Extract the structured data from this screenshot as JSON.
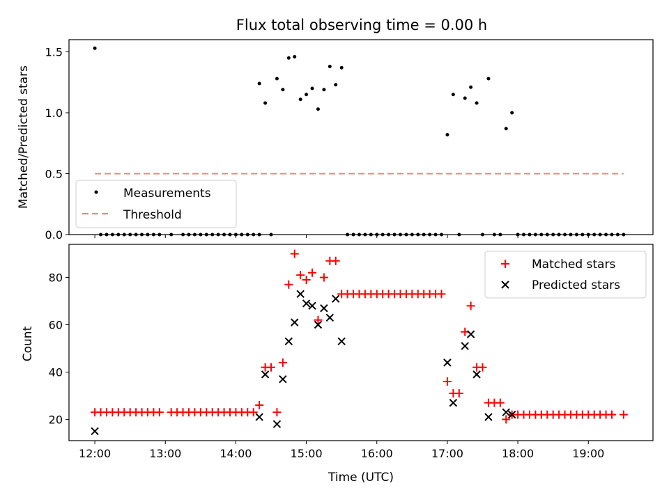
{
  "chart_data": [
    {
      "type": "scatter",
      "title": "Flux total observing time = 0.00 h",
      "xlabel": "",
      "ylabel": "Matched/Predicted stars",
      "xlim": [
        "11:38",
        "19:55"
      ],
      "ylim": [
        0,
        1.6
      ],
      "grid": false,
      "legend_position": "lower-left",
      "x_ticks": [
        "12:00",
        "13:00",
        "14:00",
        "15:00",
        "16:00",
        "17:00",
        "18:00",
        "19:00"
      ],
      "y_ticks": [
        "0.0",
        "0.5",
        "1.0",
        "1.5"
      ],
      "series": [
        {
          "name": "Measurements",
          "kind": "scatter",
          "marker": "dot",
          "color": "#000000",
          "points": [
            [
              "12:00",
              1.53
            ],
            [
              "12:05",
              0
            ],
            [
              "12:10",
              0
            ],
            [
              "12:15",
              0
            ],
            [
              "12:20",
              0
            ],
            [
              "12:25",
              0
            ],
            [
              "12:30",
              0
            ],
            [
              "12:35",
              0
            ],
            [
              "12:40",
              0
            ],
            [
              "12:45",
              0
            ],
            [
              "12:50",
              0
            ],
            [
              "12:55",
              0
            ],
            [
              "13:05",
              0
            ],
            [
              "13:15",
              0
            ],
            [
              "13:20",
              0
            ],
            [
              "13:25",
              0
            ],
            [
              "13:30",
              0
            ],
            [
              "13:35",
              0
            ],
            [
              "13:40",
              0
            ],
            [
              "13:45",
              0
            ],
            [
              "13:50",
              0
            ],
            [
              "13:55",
              0
            ],
            [
              "14:00",
              0
            ],
            [
              "14:05",
              0
            ],
            [
              "14:10",
              0
            ],
            [
              "14:15",
              0
            ],
            [
              "14:20",
              0
            ],
            [
              "14:20",
              1.24
            ],
            [
              "14:25",
              1.08
            ],
            [
              "14:30",
              0
            ],
            [
              "14:35",
              1.28
            ],
            [
              "14:40",
              1.19
            ],
            [
              "14:45",
              1.45
            ],
            [
              "14:50",
              1.46
            ],
            [
              "14:55",
              1.11
            ],
            [
              "15:00",
              1.15
            ],
            [
              "15:05",
              1.2
            ],
            [
              "15:10",
              1.03
            ],
            [
              "15:15",
              1.19
            ],
            [
              "15:20",
              1.38
            ],
            [
              "15:25",
              1.23
            ],
            [
              "15:30",
              1.37
            ],
            [
              "15:35",
              0
            ],
            [
              "15:40",
              0
            ],
            [
              "15:45",
              0
            ],
            [
              "15:50",
              0
            ],
            [
              "15:55",
              0
            ],
            [
              "16:00",
              0
            ],
            [
              "16:05",
              0
            ],
            [
              "16:10",
              0
            ],
            [
              "16:15",
              0
            ],
            [
              "16:20",
              0
            ],
            [
              "16:25",
              0
            ],
            [
              "16:30",
              0
            ],
            [
              "16:35",
              0
            ],
            [
              "16:40",
              0
            ],
            [
              "16:45",
              0
            ],
            [
              "16:50",
              0
            ],
            [
              "16:55",
              0
            ],
            [
              "17:00",
              0.82
            ],
            [
              "17:05",
              1.15
            ],
            [
              "17:10",
              0
            ],
            [
              "17:15",
              1.12
            ],
            [
              "17:20",
              1.21
            ],
            [
              "17:25",
              1.08
            ],
            [
              "17:30",
              0
            ],
            [
              "17:35",
              1.28
            ],
            [
              "17:40",
              0
            ],
            [
              "17:45",
              0
            ],
            [
              "17:50",
              0.87
            ],
            [
              "17:55",
              1.0
            ],
            [
              "18:00",
              0
            ],
            [
              "18:05",
              0
            ],
            [
              "18:10",
              0
            ],
            [
              "18:15",
              0
            ],
            [
              "18:20",
              0
            ],
            [
              "18:25",
              0
            ],
            [
              "18:30",
              0
            ],
            [
              "18:35",
              0
            ],
            [
              "18:40",
              0
            ],
            [
              "18:45",
              0
            ],
            [
              "18:50",
              0
            ],
            [
              "18:55",
              0
            ],
            [
              "19:00",
              0
            ],
            [
              "19:05",
              0
            ],
            [
              "19:10",
              0
            ],
            [
              "19:15",
              0
            ],
            [
              "19:20",
              0
            ],
            [
              "19:25",
              0
            ],
            [
              "19:30",
              0
            ]
          ]
        },
        {
          "name": "Threshold",
          "kind": "line",
          "style": "dashed",
          "color": "#f08080",
          "points": [
            [
              "12:00",
              0.5
            ],
            [
              "19:30",
              0.5
            ]
          ]
        }
      ]
    },
    {
      "type": "scatter",
      "title": "",
      "xlabel": "Time (UTC)",
      "ylabel": "Count",
      "xlim": [
        "11:38",
        "19:55"
      ],
      "ylim": [
        11,
        94
      ],
      "grid": false,
      "legend_position": "upper-right",
      "x_ticks": [
        "12:00",
        "13:00",
        "14:00",
        "15:00",
        "16:00",
        "17:00",
        "18:00",
        "19:00"
      ],
      "y_ticks": [
        "20",
        "40",
        "60",
        "80"
      ],
      "series": [
        {
          "name": "Matched stars",
          "kind": "scatter",
          "marker": "plus",
          "color": "#ff0000",
          "points": [
            [
              "12:00",
              23
            ],
            [
              "12:05",
              23
            ],
            [
              "12:10",
              23
            ],
            [
              "12:15",
              23
            ],
            [
              "12:20",
              23
            ],
            [
              "12:25",
              23
            ],
            [
              "12:30",
              23
            ],
            [
              "12:35",
              23
            ],
            [
              "12:40",
              23
            ],
            [
              "12:45",
              23
            ],
            [
              "12:50",
              23
            ],
            [
              "12:55",
              23
            ],
            [
              "13:05",
              23
            ],
            [
              "13:10",
              23
            ],
            [
              "13:15",
              23
            ],
            [
              "13:20",
              23
            ],
            [
              "13:25",
              23
            ],
            [
              "13:30",
              23
            ],
            [
              "13:35",
              23
            ],
            [
              "13:40",
              23
            ],
            [
              "13:45",
              23
            ],
            [
              "13:50",
              23
            ],
            [
              "13:55",
              23
            ],
            [
              "14:00",
              23
            ],
            [
              "14:05",
              23
            ],
            [
              "14:10",
              23
            ],
            [
              "14:15",
              23
            ],
            [
              "14:20",
              26
            ],
            [
              "14:25",
              42
            ],
            [
              "14:30",
              42
            ],
            [
              "14:35",
              23
            ],
            [
              "14:40",
              44
            ],
            [
              "14:45",
              77
            ],
            [
              "14:50",
              90
            ],
            [
              "14:55",
              81
            ],
            [
              "15:00",
              79
            ],
            [
              "15:05",
              82
            ],
            [
              "15:10",
              62
            ],
            [
              "15:15",
              80
            ],
            [
              "15:20",
              87
            ],
            [
              "15:25",
              87
            ],
            [
              "15:30",
              73
            ],
            [
              "15:35",
              73
            ],
            [
              "15:40",
              73
            ],
            [
              "15:45",
              73
            ],
            [
              "15:50",
              73
            ],
            [
              "15:55",
              73
            ],
            [
              "16:00",
              73
            ],
            [
              "16:05",
              73
            ],
            [
              "16:10",
              73
            ],
            [
              "16:15",
              73
            ],
            [
              "16:20",
              73
            ],
            [
              "16:25",
              73
            ],
            [
              "16:30",
              73
            ],
            [
              "16:35",
              73
            ],
            [
              "16:40",
              73
            ],
            [
              "16:45",
              73
            ],
            [
              "16:50",
              73
            ],
            [
              "16:55",
              73
            ],
            [
              "17:00",
              36
            ],
            [
              "17:05",
              31
            ],
            [
              "17:10",
              31
            ],
            [
              "17:15",
              57
            ],
            [
              "17:20",
              68
            ],
            [
              "17:25",
              42
            ],
            [
              "17:30",
              42
            ],
            [
              "17:35",
              27
            ],
            [
              "17:40",
              27
            ],
            [
              "17:45",
              27
            ],
            [
              "17:50",
              20
            ],
            [
              "17:55",
              22
            ],
            [
              "18:00",
              22
            ],
            [
              "18:05",
              22
            ],
            [
              "18:10",
              22
            ],
            [
              "18:15",
              22
            ],
            [
              "18:20",
              22
            ],
            [
              "18:25",
              22
            ],
            [
              "18:30",
              22
            ],
            [
              "18:35",
              22
            ],
            [
              "18:40",
              22
            ],
            [
              "18:45",
              22
            ],
            [
              "18:50",
              22
            ],
            [
              "18:55",
              22
            ],
            [
              "19:00",
              22
            ],
            [
              "19:05",
              22
            ],
            [
              "19:10",
              22
            ],
            [
              "19:15",
              22
            ],
            [
              "19:20",
              22
            ],
            [
              "19:30",
              22
            ]
          ]
        },
        {
          "name": "Predicted stars",
          "kind": "scatter",
          "marker": "x",
          "color": "#000000",
          "points": [
            [
              "12:00",
              15
            ],
            [
              "14:20",
              21
            ],
            [
              "14:25",
              39
            ],
            [
              "14:35",
              18
            ],
            [
              "14:40",
              37
            ],
            [
              "14:45",
              53
            ],
            [
              "14:50",
              61
            ],
            [
              "14:55",
              73
            ],
            [
              "15:00",
              69
            ],
            [
              "15:05",
              68
            ],
            [
              "15:10",
              60
            ],
            [
              "15:15",
              67
            ],
            [
              "15:20",
              63
            ],
            [
              "15:25",
              71
            ],
            [
              "15:30",
              53
            ],
            [
              "17:00",
              44
            ],
            [
              "17:05",
              27
            ],
            [
              "17:15",
              51
            ],
            [
              "17:20",
              56
            ],
            [
              "17:25",
              39
            ],
            [
              "17:35",
              21
            ],
            [
              "17:50",
              23
            ],
            [
              "17:55",
              22
            ]
          ]
        }
      ]
    }
  ]
}
